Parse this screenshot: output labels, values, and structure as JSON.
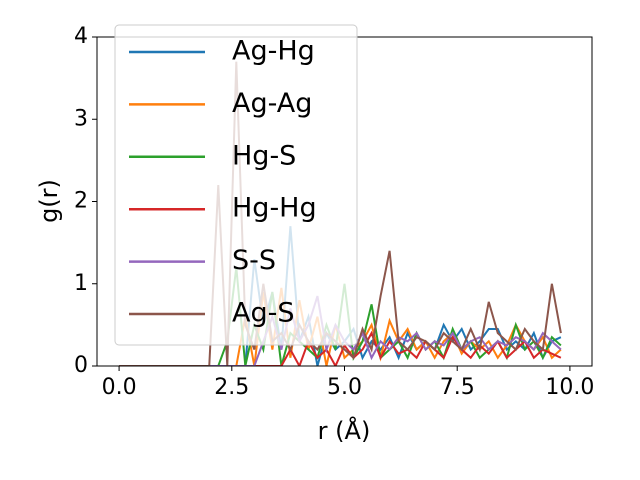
{
  "chart_data": {
    "type": "line",
    "xlabel": "r (Å)",
    "ylabel": "g(r)",
    "x": [
      0,
      0.2,
      0.4,
      0.6,
      0.8,
      1.0,
      1.2,
      1.4,
      1.6,
      1.8,
      2.0,
      2.2,
      2.4,
      2.6,
      2.8,
      3.0,
      3.2,
      3.4,
      3.6,
      3.8,
      4.0,
      4.2,
      4.4,
      4.6,
      4.8,
      5.0,
      5.2,
      5.4,
      5.6,
      5.8,
      6.0,
      6.2,
      6.4,
      6.6,
      6.8,
      7.0,
      7.2,
      7.4,
      7.6,
      7.8,
      8.0,
      8.2,
      8.4,
      8.6,
      8.8,
      9.0,
      9.2,
      9.4,
      9.6,
      9.8
    ],
    "series": [
      {
        "name": "Ag-Hg",
        "color": "#1f77b4",
        "values": [
          0,
          0,
          0,
          0,
          0,
          0,
          0,
          0,
          0,
          0,
          0,
          0,
          0,
          0,
          0,
          1.3,
          0.5,
          0.9,
          0.2,
          1.7,
          0.3,
          0.6,
          0,
          0.4,
          0.2,
          0.3,
          0.45,
          0.1,
          0.3,
          0.2,
          0.35,
          0.1,
          0.4,
          0.2,
          0.3,
          0.2,
          0.5,
          0.3,
          0.45,
          0.2,
          0.3,
          0.45,
          0.45,
          0.2,
          0.3,
          0.2,
          0.4,
          0.1,
          0.3,
          0.35
        ]
      },
      {
        "name": "Ag-Ag",
        "color": "#ff7f0e",
        "values": [
          0,
          0,
          0,
          0,
          0,
          0,
          0,
          0,
          0,
          0,
          0,
          0,
          0,
          0,
          0.6,
          0,
          0.9,
          0.2,
          0.95,
          0.1,
          0.8,
          0.2,
          0.6,
          0,
          0.5,
          0.1,
          0.2,
          0.3,
          0.5,
          0.1,
          0.55,
          0.3,
          0.45,
          0.2,
          0.3,
          0.1,
          0.3,
          0.4,
          0.15,
          0.3,
          0.2,
          0.3,
          0.1,
          0.25,
          0.5,
          0.3,
          0.2,
          0.35,
          0.1,
          0.2
        ]
      },
      {
        "name": "Hg-S",
        "color": "#2ca02c",
        "values": [
          0,
          0,
          0,
          0,
          0,
          0,
          0,
          0,
          0,
          0,
          0,
          0,
          0.3,
          1.2,
          0,
          0.5,
          0.2,
          0.9,
          0,
          0.4,
          0.3,
          0.2,
          0.1,
          0.5,
          0.2,
          1.0,
          0.1,
          0.3,
          0.75,
          0.1,
          0.2,
          0.3,
          0.1,
          0.4,
          0.2,
          0.3,
          0.1,
          0.45,
          0.2,
          0.3,
          0.1,
          0.2,
          0.3,
          0.1,
          0.5,
          0.2,
          0.3,
          0.1,
          0.35,
          0.25
        ]
      },
      {
        "name": "Hg-Hg",
        "color": "#d62728",
        "values": [
          0,
          0,
          0,
          0,
          0,
          0,
          0,
          0,
          0,
          0,
          0,
          0,
          0,
          0,
          0,
          0,
          0,
          0,
          0,
          0.2,
          0,
          0.3,
          0.1,
          0.2,
          0,
          0.25,
          0.1,
          0.2,
          0.4,
          0.1,
          0.3,
          0.15,
          0.2,
          0.1,
          0.3,
          0.2,
          0.1,
          0.35,
          0.2,
          0.1,
          0.25,
          0.15,
          0.3,
          0.1,
          0.2,
          0.3,
          0.1,
          0.2,
          0.15,
          0.1
        ]
      },
      {
        "name": "S-S",
        "color": "#9467bd",
        "values": [
          0,
          0,
          0,
          0,
          0,
          0,
          0,
          0,
          0,
          0,
          0,
          0,
          0,
          0,
          0,
          0,
          0.3,
          0.6,
          0.2,
          0.7,
          0.3,
          0.5,
          0.85,
          0.2,
          0.5,
          0.3,
          0.2,
          0.4,
          0.1,
          0.3,
          0.2,
          0.35,
          0.3,
          0.4,
          0.2,
          0.3,
          0.25,
          0.4,
          0.2,
          0.3,
          0.35,
          0.2,
          0.3,
          0.25,
          0.35,
          0.3,
          0.2,
          0.4,
          0.3,
          0.2
        ]
      },
      {
        "name": "Ag-S",
        "color": "#8c564b",
        "values": [
          0,
          0,
          0,
          0,
          0,
          0,
          0,
          0,
          0,
          0,
          0,
          2.2,
          0,
          3.7,
          0.5,
          0.2,
          1.0,
          0.3,
          0.4,
          0.2,
          0.5,
          0.3,
          0.2,
          0.4,
          0.3,
          0.2,
          0.1,
          0.45,
          0.2,
          0.85,
          1.4,
          0.3,
          0.2,
          0.35,
          0.3,
          0.2,
          0.4,
          0.3,
          0.2,
          0.45,
          0.2,
          0.78,
          0.4,
          0.3,
          0.2,
          0.45,
          0.3,
          0.2,
          1.0,
          0.4
        ]
      }
    ],
    "xlim": [
      -0.49,
      10.49
    ],
    "ylim": [
      0,
      4
    ],
    "xticks": [
      {
        "value": 0,
        "label": "0.0"
      },
      2.5,
      {
        "value": 5,
        "label": "5.0"
      },
      7.5,
      {
        "value": 10,
        "label": "10.0"
      }
    ],
    "yticks": [
      0,
      1,
      2,
      3,
      4
    ],
    "legend": "upper left"
  }
}
